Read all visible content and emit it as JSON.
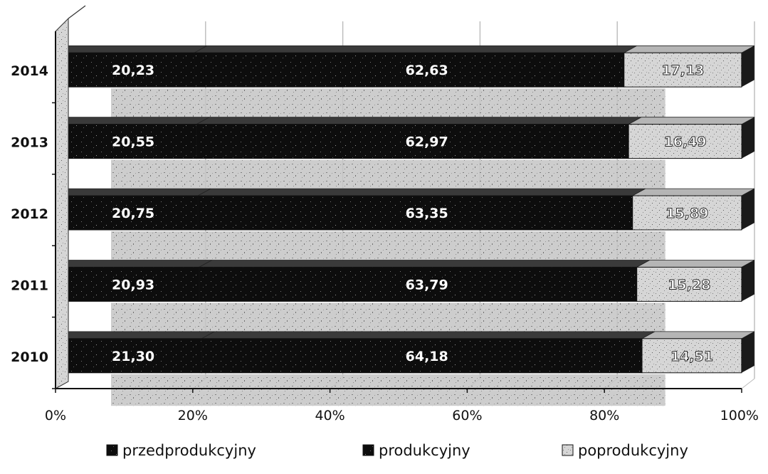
{
  "chart_data": {
    "type": "bar",
    "orientation": "horizontal",
    "stacked": "percent",
    "categories": [
      "2010",
      "2011",
      "2012",
      "2013",
      "2014"
    ],
    "series": [
      {
        "name": "przedprodukcyjny",
        "values": [
          "21,30",
          "20,93",
          "20,75",
          "20,55",
          "20,23"
        ],
        "numeric": [
          21.3,
          20.93,
          20.75,
          20.55,
          20.23
        ]
      },
      {
        "name": "produkcyjny",
        "values": [
          "64,18",
          "63,79",
          "63,35",
          "62,97",
          "62,63"
        ],
        "numeric": [
          64.18,
          63.79,
          63.35,
          62.97,
          62.63
        ]
      },
      {
        "name": "poprodukcyjny",
        "values": [
          "14,51",
          "15,28",
          "15,89",
          "16,49",
          "17,13"
        ],
        "numeric": [
          14.51,
          15.28,
          15.89,
          16.49,
          17.13
        ]
      }
    ],
    "x_ticks": [
      "0%",
      "20%",
      "40%",
      "60%",
      "80%",
      "100%"
    ],
    "xlim": [
      0,
      100
    ],
    "grid": true,
    "legend_position": "bottom",
    "colors": {
      "przedprodukcyjny": "#111111",
      "produkcyjny": "#0a0a0a",
      "poprodukcyjny": "#c9c9c9",
      "shadow": "#bdbdbd"
    }
  }
}
